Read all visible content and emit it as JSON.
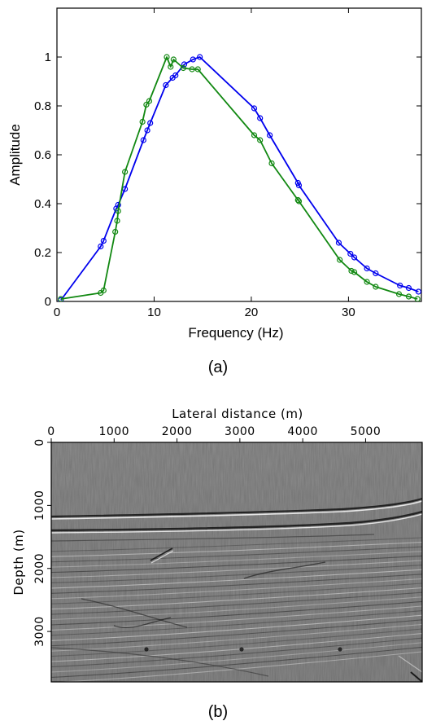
{
  "chart_data": [
    {
      "type": "line",
      "xlabel": "Frequency (Hz)",
      "ylabel": "Amplitude",
      "xlim": [
        0,
        37.5
      ],
      "ylim": [
        0,
        1.2
      ],
      "xticks": [
        "0",
        "10",
        "20",
        "30"
      ],
      "yticks": [
        "0",
        "0.2",
        "0.4",
        "0.6",
        "0.8",
        "1"
      ],
      "grid": false,
      "series": [
        {
          "color": "#0000ee",
          "marker": "open-circle",
          "x": [
            0.4,
            4.5,
            4.8,
            6.1,
            6.3,
            7.0,
            8.9,
            9.3,
            9.6,
            11.2,
            11.9,
            12.2,
            13.1,
            14.0,
            14.7,
            20.3,
            20.9,
            21.9,
            24.8,
            24.9,
            29.0,
            30.2,
            30.6,
            31.9,
            32.8,
            35.3,
            36.2,
            37.2
          ],
          "y": [
            0.005,
            0.225,
            0.248,
            0.38,
            0.395,
            0.46,
            0.66,
            0.7,
            0.73,
            0.885,
            0.915,
            0.925,
            0.97,
            0.99,
            1.0,
            0.79,
            0.75,
            0.68,
            0.485,
            0.475,
            0.24,
            0.195,
            0.18,
            0.135,
            0.115,
            0.065,
            0.055,
            0.04
          ]
        },
        {
          "color": "#118811",
          "marker": "open-circle",
          "x": [
            0.4,
            4.5,
            4.8,
            6.0,
            6.2,
            6.3,
            7.0,
            8.8,
            9.2,
            9.5,
            11.3,
            11.7,
            12.0,
            13.0,
            13.9,
            14.5,
            20.3,
            20.9,
            22.1,
            24.8,
            24.9,
            29.1,
            30.3,
            30.6,
            31.9,
            32.8,
            35.2,
            36.2,
            37.1
          ],
          "y": [
            0.01,
            0.035,
            0.045,
            0.285,
            0.33,
            0.37,
            0.53,
            0.735,
            0.805,
            0.82,
            1.0,
            0.96,
            0.99,
            0.955,
            0.95,
            0.95,
            0.68,
            0.66,
            0.565,
            0.415,
            0.41,
            0.17,
            0.125,
            0.12,
            0.08,
            0.06,
            0.03,
            0.02,
            0.01
          ]
        }
      ]
    },
    {
      "type": "heatmap",
      "xlabel": "Lateral distance (m)",
      "ylabel": "Depth (m)",
      "xlim": [
        0,
        5900
      ],
      "ylim": [
        3800,
        0
      ],
      "xticks": [
        "0",
        "1000",
        "2000",
        "3000",
        "4000",
        "5000"
      ],
      "yticks": [
        "0",
        "1000",
        "2000",
        "3000"
      ],
      "colormap": "grayscale"
    }
  ],
  "captions": {
    "a": "(a)",
    "b": "(b)"
  }
}
